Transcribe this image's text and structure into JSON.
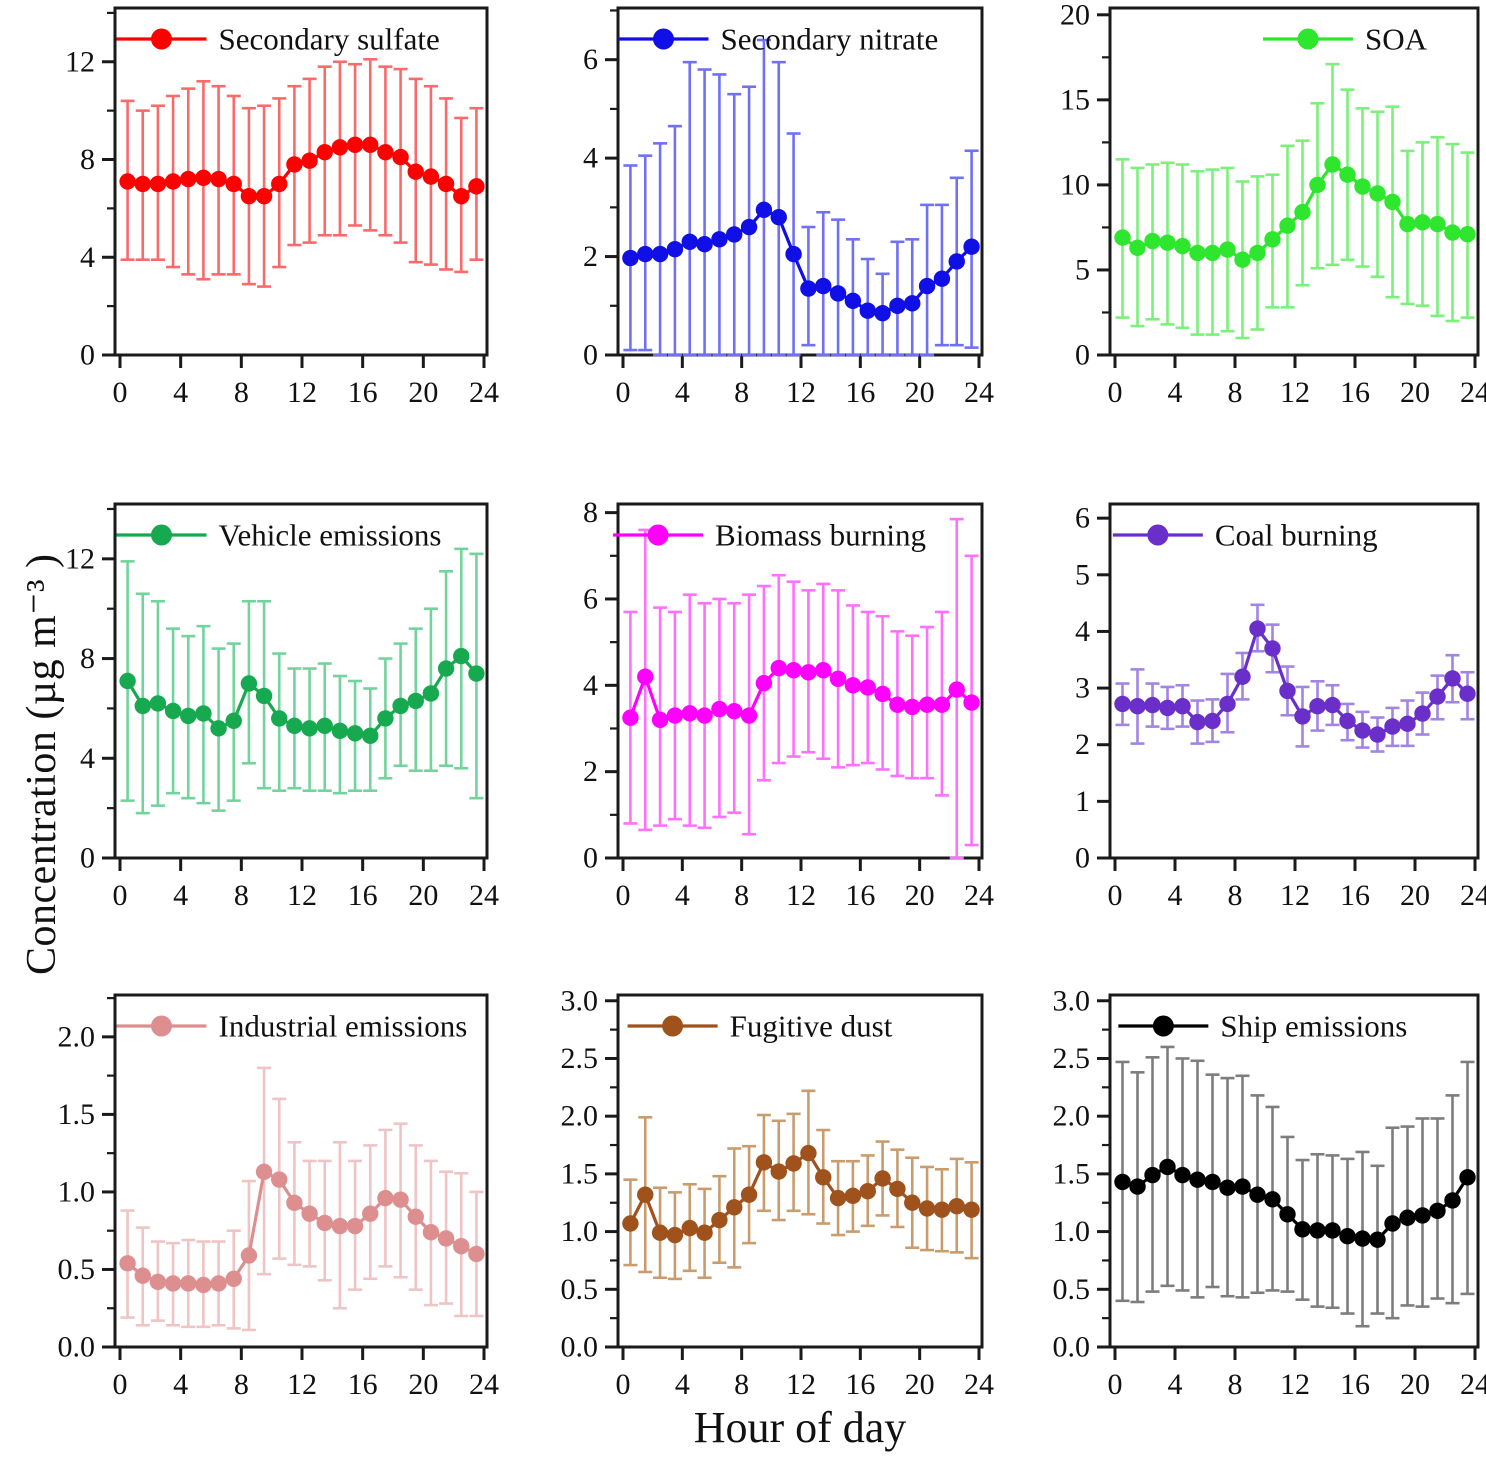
{
  "figure": {
    "y_axis_label": "Concentration (µg m⁻³ )",
    "x_axis_label": "Hour of day",
    "hours": [
      0.5,
      1.5,
      2.5,
      3.5,
      4.5,
      5.5,
      6.5,
      7.5,
      8.5,
      9.5,
      10.5,
      11.5,
      12.5,
      13.5,
      14.5,
      15.5,
      16.5,
      17.5,
      18.5,
      19.5,
      20.5,
      21.5,
      22.5,
      23.5
    ],
    "x_ticks": [
      0,
      4,
      8,
      12,
      16,
      20,
      24
    ],
    "xlim": [
      0,
      24
    ]
  },
  "chart_data": [
    {
      "type": "line",
      "series_name": "Secondary sulfate",
      "color": "#ff0000",
      "error_color": "#f96a6a",
      "ylim": [
        0,
        14.2
      ],
      "ytick_vals": [
        0,
        4,
        8,
        12
      ],
      "ytick_labels": [
        "0",
        "4",
        "8",
        "12"
      ],
      "yminor": [
        2,
        6,
        10,
        14
      ],
      "legend_x": 0.125,
      "values": [
        7.1,
        7.0,
        7.0,
        7.1,
        7.2,
        7.25,
        7.2,
        7.0,
        6.5,
        6.5,
        7.0,
        7.8,
        7.95,
        8.3,
        8.5,
        8.6,
        8.6,
        8.3,
        8.1,
        7.5,
        7.3,
        7.0,
        6.5,
        6.9
      ],
      "err_low": [
        3.9,
        3.9,
        3.9,
        3.6,
        3.3,
        3.1,
        3.3,
        3.3,
        2.9,
        2.8,
        3.6,
        4.5,
        4.6,
        4.9,
        4.9,
        5.3,
        5.1,
        4.9,
        4.6,
        3.8,
        3.7,
        3.5,
        3.4,
        3.9
      ],
      "err_high": [
        10.4,
        10.0,
        10.2,
        10.6,
        10.9,
        11.2,
        11.0,
        10.6,
        10.1,
        10.2,
        10.5,
        11.0,
        11.3,
        11.8,
        12.0,
        11.9,
        12.1,
        11.8,
        11.7,
        11.3,
        11.0,
        10.5,
        9.7,
        10.1
      ]
    },
    {
      "type": "line",
      "series_name": "Secondary nitrate",
      "color": "#0f0fe6",
      "error_color": "#7070f5",
      "ylim": [
        0,
        7.05
      ],
      "ytick_vals": [
        0,
        2,
        4,
        6
      ],
      "ytick_labels": [
        "0",
        "2",
        "4",
        "6"
      ],
      "yminor": [
        1,
        3,
        5,
        7
      ],
      "legend_x": 0.125,
      "values": [
        1.97,
        2.05,
        2.05,
        2.15,
        2.3,
        2.25,
        2.35,
        2.45,
        2.6,
        2.95,
        2.8,
        2.05,
        1.35,
        1.4,
        1.25,
        1.1,
        0.9,
        0.85,
        1.0,
        1.05,
        1.4,
        1.55,
        1.9,
        2.2
      ],
      "err_low": [
        0.1,
        0.1,
        0.0,
        0.0,
        0.0,
        0.0,
        0.0,
        0.0,
        0.0,
        0.0,
        0.0,
        0.0,
        0.2,
        0.0,
        0.0,
        0.0,
        0.0,
        0.0,
        0.0,
        0.0,
        0.0,
        0.2,
        0.2,
        0.15
      ],
      "err_high": [
        3.85,
        4.05,
        4.3,
        4.65,
        5.95,
        5.8,
        5.7,
        5.3,
        5.45,
        6.4,
        5.95,
        4.5,
        2.6,
        2.9,
        2.75,
        2.35,
        1.95,
        1.65,
        2.3,
        2.35,
        3.05,
        3.05,
        3.6,
        4.15
      ]
    },
    {
      "type": "line",
      "series_name": "SOA",
      "color": "#2ee62e",
      "error_color": "#7bf07b",
      "ylim": [
        0,
        20.4
      ],
      "ytick_vals": [
        0,
        5,
        10,
        15,
        20
      ],
      "ytick_labels": [
        "0",
        "5",
        "10",
        "15",
        "20"
      ],
      "yminor": [
        2.5,
        7.5,
        12.5,
        17.5
      ],
      "legend_x": 0.538,
      "values": [
        6.9,
        6.3,
        6.7,
        6.6,
        6.4,
        6.0,
        6.0,
        6.2,
        5.6,
        6.0,
        6.8,
        7.6,
        8.4,
        10.0,
        11.2,
        10.6,
        9.9,
        9.5,
        9.0,
        7.7,
        7.8,
        7.7,
        7.2,
        7.1
      ],
      "err_low": [
        2.2,
        1.7,
        2.1,
        1.8,
        1.6,
        1.2,
        1.2,
        1.4,
        1.0,
        1.5,
        2.8,
        2.8,
        4.1,
        5.1,
        5.3,
        5.6,
        5.2,
        4.6,
        3.4,
        3.0,
        2.9,
        2.3,
        2.0,
        2.2
      ],
      "err_high": [
        11.5,
        11.0,
        11.2,
        11.3,
        11.2,
        10.8,
        10.9,
        11.0,
        10.2,
        10.5,
        10.6,
        12.3,
        12.6,
        14.8,
        17.1,
        15.6,
        14.5,
        14.3,
        14.6,
        12.0,
        12.5,
        12.8,
        12.4,
        11.9
      ]
    },
    {
      "type": "line",
      "series_name": "Vehicle emissions",
      "color": "#17a94f",
      "error_color": "#72d49c",
      "ylim": [
        0,
        14.2
      ],
      "ytick_vals": [
        0,
        4,
        8,
        12
      ],
      "ytick_labels": [
        "0",
        "4",
        "8",
        "12"
      ],
      "yminor": [
        2,
        6,
        10,
        14
      ],
      "legend_x": 0.125,
      "values": [
        7.1,
        6.1,
        6.2,
        5.9,
        5.7,
        5.8,
        5.2,
        5.5,
        7.0,
        6.5,
        5.6,
        5.3,
        5.2,
        5.3,
        5.1,
        5.0,
        4.9,
        5.6,
        6.1,
        6.3,
        6.6,
        7.6,
        8.1,
        7.4
      ],
      "err_low": [
        2.3,
        1.8,
        2.1,
        2.6,
        2.4,
        2.2,
        1.9,
        2.3,
        3.8,
        2.8,
        2.7,
        2.8,
        2.7,
        2.7,
        2.6,
        2.7,
        2.7,
        3.2,
        3.7,
        3.5,
        3.5,
        3.7,
        3.6,
        2.4
      ],
      "err_high": [
        11.9,
        10.6,
        10.3,
        9.2,
        8.9,
        9.3,
        8.4,
        8.6,
        10.3,
        10.3,
        8.2,
        7.6,
        7.6,
        7.8,
        7.3,
        7.1,
        6.8,
        8.0,
        8.6,
        9.2,
        10.0,
        11.5,
        12.4,
        12.2
      ]
    },
    {
      "type": "line",
      "series_name": "Biomass burning",
      "color": "#ff00ff",
      "error_color": "#ff70ff",
      "ylim": [
        0,
        8.2
      ],
      "ytick_vals": [
        0,
        2,
        4,
        6,
        8
      ],
      "ytick_labels": [
        "0",
        "2",
        "4",
        "6",
        "8"
      ],
      "yminor": [
        1,
        3,
        5,
        7
      ],
      "legend_x": 0.11,
      "values": [
        3.25,
        4.2,
        3.2,
        3.3,
        3.35,
        3.3,
        3.45,
        3.4,
        3.3,
        4.05,
        4.4,
        4.35,
        4.3,
        4.35,
        4.15,
        4.0,
        3.95,
        3.8,
        3.55,
        3.5,
        3.55,
        3.55,
        3.9,
        3.6
      ],
      "err_low": [
        0.8,
        0.65,
        0.75,
        0.9,
        0.75,
        0.7,
        0.95,
        1.05,
        0.55,
        1.8,
        2.2,
        2.35,
        2.45,
        2.3,
        2.1,
        2.15,
        2.2,
        2.05,
        1.9,
        1.85,
        1.85,
        1.45,
        0.0,
        0.3
      ],
      "err_high": [
        5.7,
        7.6,
        5.8,
        5.7,
        6.1,
        5.9,
        6.0,
        5.9,
        6.1,
        6.3,
        6.55,
        6.4,
        6.2,
        6.35,
        6.2,
        5.85,
        5.7,
        5.6,
        5.25,
        5.15,
        5.35,
        5.7,
        7.85,
        7.0
      ]
    },
    {
      "type": "line",
      "series_name": "Coal burning",
      "color": "#6a2fc9",
      "error_color": "#a284e2",
      "ylim": [
        0,
        6.25
      ],
      "ytick_vals": [
        0,
        1,
        2,
        3,
        4,
        5,
        6
      ],
      "ytick_labels": [
        "0",
        "1",
        "2",
        "3",
        "4",
        "5",
        "6"
      ],
      "yminor": [],
      "legend_x": 0.13,
      "values": [
        2.72,
        2.68,
        2.7,
        2.65,
        2.68,
        2.4,
        2.42,
        2.72,
        3.2,
        4.05,
        3.7,
        2.95,
        2.5,
        2.68,
        2.7,
        2.42,
        2.25,
        2.18,
        2.32,
        2.37,
        2.55,
        2.85,
        3.17,
        2.9
      ],
      "err_low": [
        2.35,
        2.02,
        2.32,
        2.28,
        2.32,
        2.02,
        2.05,
        2.22,
        2.8,
        3.65,
        3.28,
        2.52,
        1.97,
        2.25,
        2.35,
        2.08,
        1.95,
        1.88,
        1.98,
        1.98,
        2.18,
        2.45,
        2.75,
        2.45
      ],
      "err_high": [
        3.08,
        3.33,
        3.08,
        3.02,
        3.05,
        2.78,
        2.8,
        3.25,
        3.62,
        4.47,
        4.12,
        3.38,
        3.02,
        3.12,
        3.05,
        2.72,
        2.58,
        2.48,
        2.65,
        2.78,
        2.92,
        3.22,
        3.58,
        3.28
      ]
    },
    {
      "type": "line",
      "series_name": "Industrial emissions",
      "color": "#dd8f8f",
      "error_color": "#eec4c4",
      "ylim": [
        0,
        2.27
      ],
      "ytick_vals": [
        0,
        0.5,
        1.0,
        1.5,
        2.0
      ],
      "ytick_labels": [
        "0.0",
        "0.5",
        "1.0",
        "1.5",
        "2.0"
      ],
      "yminor": [
        0.25,
        0.75,
        1.25,
        1.75,
        2.25
      ],
      "legend_x": 0.125,
      "values": [
        0.54,
        0.46,
        0.42,
        0.41,
        0.41,
        0.4,
        0.41,
        0.44,
        0.59,
        1.13,
        1.08,
        0.93,
        0.86,
        0.8,
        0.78,
        0.78,
        0.86,
        0.96,
        0.95,
        0.84,
        0.74,
        0.7,
        0.65,
        0.6
      ],
      "err_low": [
        0.19,
        0.14,
        0.17,
        0.14,
        0.13,
        0.13,
        0.14,
        0.12,
        0.11,
        0.47,
        0.57,
        0.53,
        0.52,
        0.43,
        0.25,
        0.37,
        0.44,
        0.52,
        0.45,
        0.37,
        0.27,
        0.28,
        0.2,
        0.2
      ],
      "err_high": [
        0.88,
        0.77,
        0.68,
        0.67,
        0.69,
        0.68,
        0.68,
        0.75,
        1.07,
        1.8,
        1.6,
        1.32,
        1.2,
        1.2,
        1.32,
        1.2,
        1.3,
        1.4,
        1.44,
        1.3,
        1.2,
        1.13,
        1.12,
        1.0
      ]
    },
    {
      "type": "line",
      "series_name": "Fugitive dust",
      "color": "#a0521d",
      "error_color": "#c99c6d",
      "ylim": [
        0,
        3.05
      ],
      "ytick_vals": [
        0,
        0.5,
        1.0,
        1.5,
        2.0,
        2.5,
        3.0
      ],
      "ytick_labels": [
        "0.0",
        "0.5",
        "1.0",
        "1.5",
        "2.0",
        "2.5",
        "3.0"
      ],
      "yminor": [
        0.25,
        0.75,
        1.25,
        1.75,
        2.25,
        2.75
      ],
      "legend_x": 0.15,
      "values": [
        1.07,
        1.32,
        0.99,
        0.97,
        1.03,
        0.99,
        1.1,
        1.21,
        1.32,
        1.6,
        1.52,
        1.59,
        1.68,
        1.47,
        1.29,
        1.31,
        1.35,
        1.46,
        1.37,
        1.25,
        1.2,
        1.19,
        1.22,
        1.19
      ],
      "err_low": [
        0.71,
        0.65,
        0.6,
        0.59,
        0.66,
        0.6,
        0.73,
        0.69,
        0.9,
        1.18,
        1.1,
        1.18,
        1.15,
        1.07,
        0.97,
        1.0,
        1.05,
        1.14,
        1.04,
        0.86,
        0.84,
        0.83,
        0.82,
        0.77
      ],
      "err_high": [
        1.45,
        1.99,
        1.38,
        1.34,
        1.41,
        1.37,
        1.48,
        1.72,
        1.74,
        2.01,
        1.96,
        2.02,
        2.22,
        1.88,
        1.61,
        1.61,
        1.66,
        1.78,
        1.71,
        1.64,
        1.56,
        1.54,
        1.63,
        1.6
      ]
    },
    {
      "type": "line",
      "series_name": "Ship emissions",
      "color": "#000000",
      "error_color": "#7d7d7d",
      "ylim": [
        0,
        3.05
      ],
      "ytick_vals": [
        0,
        0.5,
        1.0,
        1.5,
        2.0,
        2.5,
        3.0
      ],
      "ytick_labels": [
        "0.0",
        "0.5",
        "1.0",
        "1.5",
        "2.0",
        "2.5",
        "3.0"
      ],
      "yminor": [
        0.25,
        0.75,
        1.25,
        1.75,
        2.25,
        2.75
      ],
      "legend_x": 0.145,
      "values": [
        1.43,
        1.39,
        1.49,
        1.56,
        1.49,
        1.45,
        1.43,
        1.38,
        1.39,
        1.32,
        1.28,
        1.15,
        1.02,
        1.01,
        1.01,
        0.96,
        0.94,
        0.93,
        1.07,
        1.12,
        1.14,
        1.18,
        1.27,
        1.47
      ],
      "err_low": [
        0.4,
        0.39,
        0.48,
        0.53,
        0.49,
        0.43,
        0.52,
        0.44,
        0.43,
        0.47,
        0.49,
        0.48,
        0.41,
        0.35,
        0.34,
        0.29,
        0.18,
        0.29,
        0.25,
        0.36,
        0.35,
        0.42,
        0.38,
        0.46
      ],
      "err_high": [
        2.47,
        2.38,
        2.51,
        2.6,
        2.5,
        2.48,
        2.36,
        2.33,
        2.35,
        2.18,
        2.08,
        1.82,
        1.62,
        1.67,
        1.66,
        1.63,
        1.69,
        1.57,
        1.9,
        1.91,
        1.98,
        1.98,
        2.18,
        2.47
      ]
    }
  ]
}
